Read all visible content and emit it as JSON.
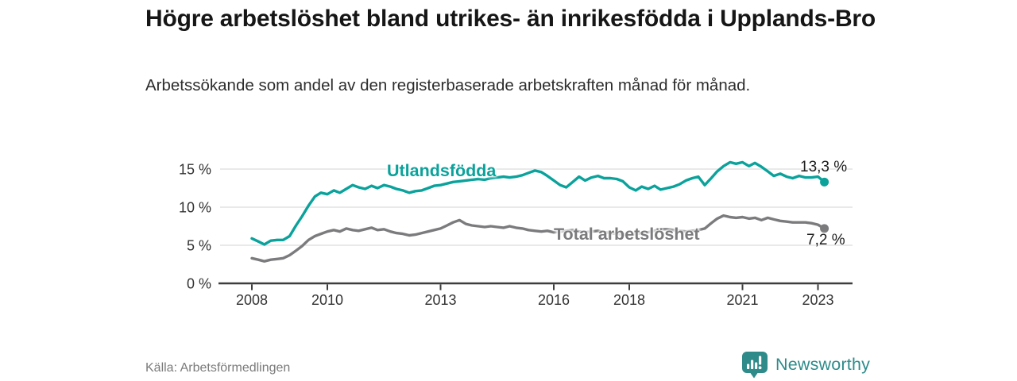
{
  "header": {
    "title": "Högre arbetslöshet bland utrikes- än inrikesfödda i Upplands-Bro",
    "subtitle": "Arbetssökande som andel av den registerbaserade arbetskraften månad för månad."
  },
  "footer": {
    "source": "Källa: Arbetsförmedlingen",
    "brand": {
      "name": "Newsworthy",
      "icon": "newsworthy-pin-barchart-icon",
      "color": "#2e8b8a"
    }
  },
  "colors": {
    "axis": "#3d3d3d",
    "grid": "#dcdcdc",
    "tick_text": "#333333",
    "background": "#ffffff"
  },
  "chart_data": {
    "type": "line",
    "unit": "%",
    "grid": true,
    "legend_position": "inline-labels",
    "xlim": [
      2007.2,
      2023.9
    ],
    "ylim": [
      0,
      16.5
    ],
    "x_ticks": [
      {
        "value": 2008,
        "label": "2008"
      },
      {
        "value": 2010,
        "label": "2010"
      },
      {
        "value": 2013,
        "label": "2013"
      },
      {
        "value": 2016,
        "label": "2016"
      },
      {
        "value": 2018,
        "label": "2018"
      },
      {
        "value": 2021,
        "label": "2021"
      },
      {
        "value": 2023,
        "label": "2023"
      }
    ],
    "y_ticks": [
      {
        "value": 0,
        "label": "0 %"
      },
      {
        "value": 5,
        "label": "5 %"
      },
      {
        "value": 10,
        "label": "10 %"
      },
      {
        "value": 15,
        "label": "15 %"
      }
    ],
    "x": [
      2008.0,
      2008.17,
      2008.33,
      2008.5,
      2008.67,
      2008.83,
      2009.0,
      2009.17,
      2009.33,
      2009.5,
      2009.67,
      2009.83,
      2010.0,
      2010.17,
      2010.33,
      2010.5,
      2010.67,
      2010.83,
      2011.0,
      2011.17,
      2011.33,
      2011.5,
      2011.67,
      2011.83,
      2012.0,
      2012.17,
      2012.33,
      2012.5,
      2012.67,
      2012.83,
      2013.0,
      2013.17,
      2013.33,
      2013.5,
      2013.67,
      2013.83,
      2014.0,
      2014.17,
      2014.33,
      2014.5,
      2014.67,
      2014.83,
      2015.0,
      2015.17,
      2015.33,
      2015.5,
      2015.67,
      2015.83,
      2016.0,
      2016.17,
      2016.33,
      2016.5,
      2016.67,
      2016.83,
      2017.0,
      2017.17,
      2017.33,
      2017.5,
      2017.67,
      2017.83,
      2018.0,
      2018.17,
      2018.33,
      2018.5,
      2018.67,
      2018.83,
      2019.0,
      2019.17,
      2019.33,
      2019.5,
      2019.67,
      2019.83,
      2020.0,
      2020.17,
      2020.33,
      2020.5,
      2020.67,
      2020.83,
      2021.0,
      2021.17,
      2021.33,
      2021.5,
      2021.67,
      2021.83,
      2022.0,
      2022.17,
      2022.33,
      2022.5,
      2022.67,
      2022.83,
      2023.0,
      2023.17
    ],
    "series": [
      {
        "name": "Utlandsfödda",
        "color": "#0aa29b",
        "end_label": "13,3 %",
        "final_value": 13.3,
        "values": [
          5.9,
          5.5,
          5.1,
          5.6,
          5.7,
          5.7,
          6.2,
          7.6,
          8.8,
          10.2,
          11.4,
          11.9,
          11.7,
          12.2,
          11.9,
          12.4,
          12.9,
          12.6,
          12.4,
          12.8,
          12.5,
          12.9,
          12.7,
          12.4,
          12.2,
          11.9,
          12.1,
          12.2,
          12.5,
          12.8,
          12.9,
          13.1,
          13.3,
          13.4,
          13.5,
          13.6,
          13.7,
          13.6,
          13.8,
          13.9,
          14.0,
          13.9,
          14.0,
          14.2,
          14.5,
          14.8,
          14.6,
          14.1,
          13.5,
          12.9,
          12.6,
          13.3,
          14.0,
          13.5,
          13.9,
          14.1,
          13.8,
          13.8,
          13.7,
          13.4,
          12.6,
          12.2,
          12.7,
          12.4,
          12.8,
          12.3,
          12.5,
          12.7,
          13.0,
          13.5,
          13.8,
          14.0,
          12.9,
          13.8,
          14.7,
          15.4,
          15.9,
          15.7,
          15.9,
          15.4,
          15.8,
          15.3,
          14.7,
          14.1,
          14.4,
          14.0,
          13.8,
          14.1,
          13.9,
          13.9,
          14.0,
          13.3
        ]
      },
      {
        "name": "Total arbetslöshet",
        "color": "#7b7b7e",
        "end_label": "7,2 %",
        "final_value": 7.2,
        "values": [
          3.3,
          3.1,
          2.9,
          3.1,
          3.2,
          3.3,
          3.7,
          4.3,
          4.9,
          5.7,
          6.2,
          6.5,
          6.8,
          7.0,
          6.8,
          7.2,
          7.0,
          6.9,
          7.1,
          7.3,
          7.0,
          7.1,
          6.8,
          6.6,
          6.5,
          6.3,
          6.4,
          6.6,
          6.8,
          7.0,
          7.2,
          7.6,
          8.0,
          8.3,
          7.8,
          7.6,
          7.5,
          7.4,
          7.5,
          7.4,
          7.3,
          7.5,
          7.3,
          7.2,
          7.0,
          6.9,
          6.8,
          6.9,
          6.7,
          6.8,
          6.9,
          7.0,
          6.8,
          6.7,
          6.8,
          6.9,
          6.7,
          6.6,
          6.5,
          6.4,
          6.4,
          6.5,
          6.6,
          6.7,
          6.9,
          7.1,
          7.1,
          7.0,
          6.9,
          6.8,
          6.9,
          7.0,
          7.2,
          7.9,
          8.5,
          8.9,
          8.7,
          8.6,
          8.7,
          8.5,
          8.6,
          8.3,
          8.6,
          8.4,
          8.2,
          8.1,
          8.0,
          8.0,
          8.0,
          7.9,
          7.7,
          7.2
        ]
      }
    ]
  }
}
